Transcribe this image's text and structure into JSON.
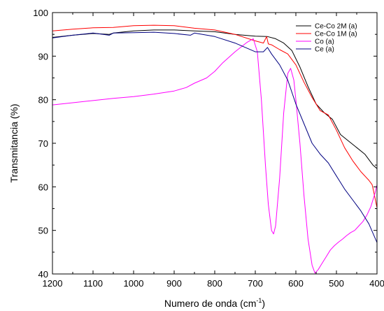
{
  "chart_data": {
    "type": "line",
    "xlabel": "Numero de onda (cm",
    "xlabel_sup": "-1",
    "xlabel_end": ")",
    "ylabel": "Transmitancia (%)",
    "xlim": [
      1200,
      400
    ],
    "ylim": [
      40,
      100
    ],
    "x_reversed": true,
    "x_ticks": [
      1200,
      1100,
      1000,
      900,
      800,
      700,
      600,
      500,
      400
    ],
    "y_ticks": [
      40,
      50,
      60,
      70,
      80,
      90,
      100
    ],
    "legend_position": "top-right",
    "series": [
      {
        "name": "Ce-Co 2M (a)",
        "color": "#000000",
        "x": [
          1200,
          1150,
          1100,
          1060,
          1050,
          1000,
          950,
          900,
          850,
          800,
          750,
          700,
          670,
          650,
          630,
          610,
          590,
          570,
          550,
          530,
          510,
          490,
          470,
          450,
          430,
          410,
          400
        ],
        "y": [
          94.3,
          94.8,
          95.2,
          95.0,
          95.3,
          95.8,
          96.0,
          96.0,
          95.8,
          95.6,
          95.0,
          94.6,
          94.5,
          94.0,
          93.0,
          91.3,
          87.5,
          83.0,
          79.0,
          77.0,
          75.5,
          72.0,
          70.5,
          69.0,
          67.5,
          65.0,
          64.2
        ]
      },
      {
        "name": "Ce-Co 1M (a)",
        "color": "#ff0000",
        "x": [
          1200,
          1150,
          1100,
          1050,
          1000,
          950,
          900,
          850,
          800,
          750,
          700,
          680,
          672,
          668,
          660,
          640,
          620,
          600,
          580,
          560,
          540,
          520,
          500,
          480,
          460,
          440,
          420,
          412,
          408,
          400
        ],
        "y": [
          95.8,
          96.2,
          96.5,
          96.6,
          97.0,
          97.1,
          97.0,
          96.4,
          96.0,
          95.0,
          93.5,
          93.0,
          94.5,
          92.8,
          92.6,
          91.5,
          90.5,
          88.0,
          84.0,
          80.5,
          77.5,
          76.5,
          73.0,
          69.0,
          66.0,
          63.5,
          61.5,
          60.5,
          58.8,
          55.2
        ]
      },
      {
        "name": "Co (a)",
        "color": "#ff00ff",
        "x": [
          1200,
          1150,
          1100,
          1050,
          1000,
          950,
          900,
          870,
          850,
          820,
          800,
          780,
          750,
          720,
          705,
          695,
          685,
          675,
          668,
          660,
          655,
          650,
          640,
          630,
          620,
          613,
          605,
          600,
          590,
          580,
          570,
          560,
          553,
          545,
          535,
          525,
          515,
          505,
          495,
          485,
          475,
          465,
          455,
          445,
          435,
          425,
          415,
          405,
          400
        ],
        "y": [
          78.8,
          79.3,
          79.8,
          80.3,
          80.7,
          81.3,
          82.0,
          82.8,
          83.8,
          85.0,
          86.5,
          88.5,
          91.0,
          93.2,
          94.0,
          91.0,
          80.0,
          65.0,
          56.0,
          50.0,
          49.2,
          51.0,
          62.0,
          77.0,
          86.0,
          87.2,
          84.5,
          80.0,
          70.0,
          58.0,
          48.0,
          42.0,
          40.2,
          41.0,
          42.5,
          44.0,
          45.5,
          46.5,
          47.3,
          48.0,
          48.8,
          49.5,
          50.0,
          51.0,
          52.0,
          53.5,
          55.5,
          58.5,
          60.5
        ]
      },
      {
        "name": "Ce (a)",
        "color": "#000080",
        "x": [
          1200,
          1150,
          1100,
          1060,
          1050,
          1000,
          950,
          900,
          860,
          850,
          800,
          750,
          700,
          680,
          670,
          660,
          640,
          620,
          600,
          580,
          560,
          540,
          520,
          500,
          480,
          460,
          440,
          420,
          400
        ],
        "y": [
          94.2,
          94.8,
          95.3,
          94.8,
          95.3,
          95.4,
          95.5,
          95.2,
          94.8,
          95.3,
          94.5,
          93.0,
          91.0,
          91.0,
          92.0,
          90.5,
          88.0,
          84.5,
          79.0,
          74.5,
          70.0,
          67.5,
          65.5,
          62.5,
          59.5,
          57.0,
          54.5,
          51.5,
          47.2
        ]
      }
    ]
  }
}
